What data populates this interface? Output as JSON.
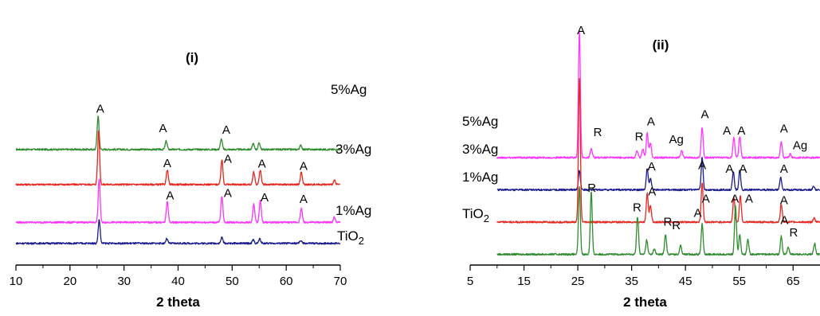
{
  "chart_data": [
    {
      "type": "line",
      "panel_label": "(i)",
      "xlabel": "2 theta",
      "ylabel": "",
      "xlim": [
        10,
        70
      ],
      "xticks": [
        "10",
        "20",
        "30",
        "40",
        "50",
        "60",
        "70"
      ],
      "series": [
        {
          "name": "5%Ag",
          "label_parts": [
            "5%Ag"
          ],
          "color": "#2e8b2e",
          "baseline": 3.3,
          "peaks": [
            {
              "x": 25.2,
              "h": 0.95
            },
            {
              "x": 37.8,
              "h": 0.24
            },
            {
              "x": 48.0,
              "h": 0.3
            },
            {
              "x": 53.9,
              "h": 0.17
            },
            {
              "x": 55.0,
              "h": 0.18
            },
            {
              "x": 62.7,
              "h": 0.12
            }
          ],
          "annotations": [
            {
              "x": 25.6,
              "h": 1.05,
              "text": "A"
            },
            {
              "x": 37.2,
              "h": 0.5,
              "text": "A"
            },
            {
              "x": 48.9,
              "h": 0.45,
              "text": "A"
            }
          ]
        },
        {
          "name": "3%Ag",
          "label_parts": [
            "3%Ag"
          ],
          "color": "#e8261e",
          "baseline": 2.3,
          "peaks": [
            {
              "x": 25.3,
              "h": 1.55
            },
            {
              "x": 38.0,
              "h": 0.42
            },
            {
              "x": 48.1,
              "h": 0.7
            },
            {
              "x": 54.0,
              "h": 0.36
            },
            {
              "x": 55.2,
              "h": 0.42
            },
            {
              "x": 62.8,
              "h": 0.34
            },
            {
              "x": 68.9,
              "h": 0.12
            }
          ],
          "annotations": [
            {
              "x": 38.0,
              "h": 0.5,
              "text": "A"
            },
            {
              "x": 49.2,
              "h": 0.62,
              "text": "A"
            },
            {
              "x": 55.5,
              "h": 0.48,
              "text": "A"
            },
            {
              "x": 63.2,
              "h": 0.42,
              "text": "A"
            }
          ]
        },
        {
          "name": "1%Ag",
          "label_parts": [
            "1%Ag"
          ],
          "color": "#ff33ff",
          "baseline": 1.22,
          "peaks": [
            {
              "x": 25.4,
              "h": 1.25
            },
            {
              "x": 38.0,
              "h": 0.6
            },
            {
              "x": 48.1,
              "h": 0.75
            },
            {
              "x": 54.0,
              "h": 0.52
            },
            {
              "x": 55.2,
              "h": 0.62
            },
            {
              "x": 62.8,
              "h": 0.4
            },
            {
              "x": 68.9,
              "h": 0.15
            }
          ],
          "annotations": [
            {
              "x": 38.5,
              "h": 0.65,
              "text": "A"
            },
            {
              "x": 49.2,
              "h": 0.72,
              "text": "A"
            },
            {
              "x": 56.0,
              "h": 0.6,
              "text": "A"
            },
            {
              "x": 63.2,
              "h": 0.55,
              "text": "A"
            }
          ]
        },
        {
          "name": "TiO2",
          "label_parts": [
            "TiO",
            "2"
          ],
          "color": "#1c1c8c",
          "baseline": 0.62,
          "peaks": [
            {
              "x": 25.4,
              "h": 0.68
            },
            {
              "x": 37.9,
              "h": 0.13
            },
            {
              "x": 48.1,
              "h": 0.17
            },
            {
              "x": 53.9,
              "h": 0.1
            },
            {
              "x": 55.1,
              "h": 0.13
            },
            {
              "x": 62.7,
              "h": 0.08
            }
          ],
          "annotations": []
        }
      ]
    },
    {
      "type": "line",
      "panel_label": "(ii)",
      "xlabel": "2 theta",
      "ylabel": "",
      "xlim": [
        5,
        70
      ],
      "xticks": [
        "5",
        "15",
        "25",
        "35",
        "45",
        "55",
        "65"
      ],
      "series": [
        {
          "name": "5%Ag",
          "label_parts": [
            "5%Ag"
          ],
          "color": "#ff33ff",
          "baseline": 3.0,
          "peaks": [
            {
              "x": 25.3,
              "h": 3.5
            },
            {
              "x": 27.5,
              "h": 0.25
            },
            {
              "x": 36.0,
              "h": 0.2
            },
            {
              "x": 37.1,
              "h": 0.25
            },
            {
              "x": 37.9,
              "h": 0.7
            },
            {
              "x": 38.5,
              "h": 0.4
            },
            {
              "x": 44.3,
              "h": 0.2
            },
            {
              "x": 48.1,
              "h": 0.85
            },
            {
              "x": 54.0,
              "h": 0.55
            },
            {
              "x": 55.1,
              "h": 0.6
            },
            {
              "x": 62.8,
              "h": 0.45
            },
            {
              "x": 64.5,
              "h": 0.1
            }
          ],
          "annotations": [
            {
              "x": 25.6,
              "h": 3.45,
              "text": "A"
            },
            {
              "x": 28.7,
              "h": 0.6,
              "text": "R"
            },
            {
              "x": 36.4,
              "h": 0.48,
              "text": "R"
            },
            {
              "x": 38.6,
              "h": 0.9,
              "text": "A"
            },
            {
              "x": 43.3,
              "h": 0.4,
              "text": "Ag"
            },
            {
              "x": 48.6,
              "h": 1.1,
              "text": "A"
            },
            {
              "x": 52.7,
              "h": 0.65,
              "text": "A"
            },
            {
              "x": 55.4,
              "h": 0.65,
              "text": "A"
            },
            {
              "x": 63.3,
              "h": 0.7,
              "text": "A"
            },
            {
              "x": 66.3,
              "h": 0.23,
              "text": "Ag"
            }
          ]
        },
        {
          "name": "3%Ag",
          "label_parts": [
            "3%Ag"
          ],
          "color": "#1c1c8c",
          "baseline": 2.1,
          "peaks": [
            {
              "x": 25.3,
              "h": 0.55
            },
            {
              "x": 37.9,
              "h": 0.6
            },
            {
              "x": 38.5,
              "h": 0.3
            },
            {
              "x": 48.1,
              "h": 0.9
            },
            {
              "x": 53.9,
              "h": 0.5
            },
            {
              "x": 55.1,
              "h": 0.55
            },
            {
              "x": 62.7,
              "h": 0.35
            },
            {
              "x": 68.8,
              "h": 0.1
            }
          ],
          "annotations": [
            {
              "x": 38.7,
              "h": 0.55,
              "text": "A"
            },
            {
              "x": 48.1,
              "h": 0.58,
              "text": "A"
            },
            {
              "x": 53.2,
              "h": 0.48,
              "text": "A"
            },
            {
              "x": 55.7,
              "h": 0.48,
              "text": "A"
            },
            {
              "x": 63.3,
              "h": 0.48,
              "text": "A"
            }
          ]
        },
        {
          "name": "1%Ag",
          "label_parts": [
            "1%Ag"
          ],
          "color": "#e8261e",
          "baseline": 1.2,
          "peaks": [
            {
              "x": 25.3,
              "h": 4.0
            },
            {
              "x": 37.9,
              "h": 0.8
            },
            {
              "x": 38.5,
              "h": 0.45
            },
            {
              "x": 48.1,
              "h": 1.1
            },
            {
              "x": 54.0,
              "h": 0.7
            },
            {
              "x": 55.2,
              "h": 0.75
            },
            {
              "x": 62.8,
              "h": 0.5
            },
            {
              "x": 68.9,
              "h": 0.12
            }
          ],
          "annotations": [
            {
              "x": 38.8,
              "h": 0.75,
              "text": "A"
            },
            {
              "x": 48.8,
              "h": 0.55,
              "text": "A"
            },
            {
              "x": 54.2,
              "h": 0.55,
              "text": "A"
            },
            {
              "x": 56.8,
              "h": 0.55,
              "text": "A"
            },
            {
              "x": 63.3,
              "h": 0.5,
              "text": "A"
            }
          ]
        },
        {
          "name": "TiO2",
          "label_parts": [
            "TiO",
            "2"
          ],
          "color": "#2e8b2e",
          "baseline": 0.3,
          "peaks": [
            {
              "x": 25.3,
              "h": 1.9
            },
            {
              "x": 27.5,
              "h": 1.75
            },
            {
              "x": 36.1,
              "h": 1.05
            },
            {
              "x": 37.8,
              "h": 0.4
            },
            {
              "x": 39.2,
              "h": 0.15
            },
            {
              "x": 41.3,
              "h": 0.55
            },
            {
              "x": 44.1,
              "h": 0.25
            },
            {
              "x": 48.1,
              "h": 0.85
            },
            {
              "x": 54.3,
              "h": 1.35
            },
            {
              "x": 55.1,
              "h": 0.55
            },
            {
              "x": 56.6,
              "h": 0.4
            },
            {
              "x": 62.8,
              "h": 0.5
            },
            {
              "x": 64.1,
              "h": 0.2
            },
            {
              "x": 69.0,
              "h": 0.3
            }
          ],
          "annotations": [
            {
              "x": 27.6,
              "h": 1.75,
              "text": "R"
            },
            {
              "x": 36.0,
              "h": 1.2,
              "text": "R"
            },
            {
              "x": 41.7,
              "h": 0.8,
              "text": "R"
            },
            {
              "x": 43.3,
              "h": 0.7,
              "text": "R"
            },
            {
              "x": 47.3,
              "h": 1.05,
              "text": "A"
            },
            {
              "x": 63.4,
              "h": 0.85,
              "text": "A"
            },
            {
              "x": 65.1,
              "h": 0.5,
              "text": "R"
            }
          ]
        }
      ]
    }
  ]
}
